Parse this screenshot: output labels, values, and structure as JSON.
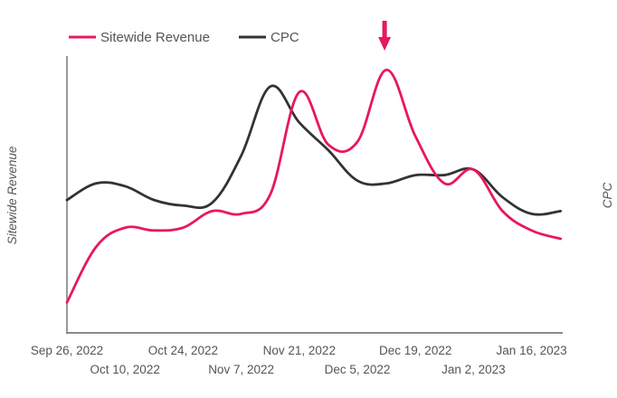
{
  "chart_data": {
    "type": "line",
    "title": "",
    "xlabel": "",
    "ylabel": "Sitewide Revenue",
    "y2label": "CPC",
    "y_units": "relative (no tick values shown)",
    "ylim": [
      0,
      100
    ],
    "grid": false,
    "legend_position": "top-left",
    "x": [
      "Sep 26, 2022",
      "Oct 3, 2022",
      "Oct 10, 2022",
      "Oct 17, 2022",
      "Oct 24, 2022",
      "Oct 31, 2022",
      "Nov 7, 2022",
      "Nov 14, 2022",
      "Nov 21, 2022",
      "Nov 28, 2022",
      "Dec 5, 2022",
      "Dec 12, 2022",
      "Dec 19, 2022",
      "Dec 26, 2022",
      "Jan 2, 2023",
      "Jan 9, 2023",
      "Jan 16, 2023",
      "Jan 23, 2023"
    ],
    "tick_labels_row1": [
      "Sep 26, 2022",
      "Oct 24, 2022",
      "Nov 21, 2022",
      "Dec 19, 2022",
      "Jan 16, 2023"
    ],
    "tick_labels_row2": [
      "Oct 10, 2022",
      "Nov 7, 2022",
      "Dec 5, 2022",
      "Jan 2, 2023"
    ],
    "tick_row1_index": [
      0,
      4,
      8,
      12,
      16
    ],
    "tick_row2_index": [
      2,
      6,
      10,
      14
    ],
    "series": [
      {
        "name": "Sitewide Revenue",
        "color": "#e8185a",
        "axis": "left",
        "values": [
          11,
          31,
          38,
          37,
          38,
          44,
          43,
          50,
          87,
          68,
          69,
          95,
          71,
          54,
          59,
          44,
          37,
          34
        ]
      },
      {
        "name": "CPC",
        "color": "#333333",
        "axis": "right",
        "values": [
          48,
          54,
          53,
          48,
          46,
          47,
          64,
          89,
          76,
          66,
          55,
          54,
          57,
          57,
          59,
          49,
          43,
          44
        ]
      }
    ],
    "annotations": [
      {
        "type": "arrow",
        "description": "Downward arrow marking the Sitewide Revenue peak",
        "x": "Dec 12, 2022",
        "color": "#e8185a"
      }
    ]
  }
}
